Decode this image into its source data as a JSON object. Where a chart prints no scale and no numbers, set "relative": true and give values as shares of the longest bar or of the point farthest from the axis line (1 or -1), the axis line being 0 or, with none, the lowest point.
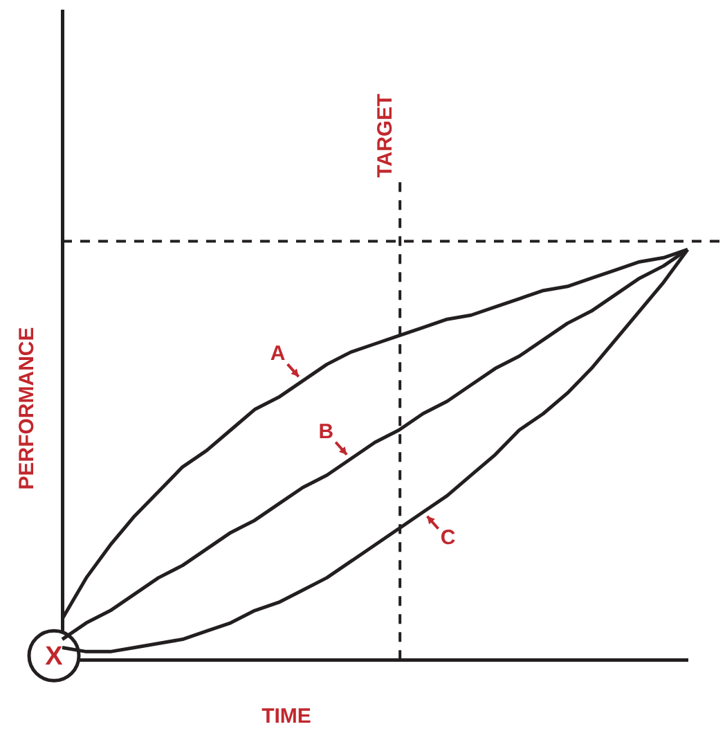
{
  "chart_data": {
    "type": "line",
    "relative": true,
    "xlabel": "TIME",
    "ylabel": "PERFORMANCE",
    "annotations": [
      "X",
      "TARGET"
    ],
    "categories": [
      null,
      null,
      null,
      null,
      null,
      null,
      null,
      null,
      null,
      null,
      null,
      null,
      null,
      null,
      null,
      null,
      null,
      null,
      null,
      null,
      null,
      null,
      null,
      null,
      null,
      null,
      null
    ],
    "series": [
      {
        "name": "A",
        "color": "#231f20",
        "values": [
          0.1,
          0.2,
          0.28,
          0.35,
          0.41,
          0.47,
          0.51,
          0.56,
          0.61,
          0.64,
          0.68,
          0.72,
          0.75,
          0.77,
          0.79,
          0.81,
          0.83,
          0.84,
          0.86,
          0.88,
          0.9,
          0.91,
          0.93,
          0.95,
          0.97,
          0.98,
          1
        ]
      },
      {
        "name": "B",
        "color": "#231f20",
        "values": [
          0.05,
          0.09,
          0.12,
          0.16,
          0.2,
          0.23,
          0.27,
          0.31,
          0.34,
          0.38,
          0.42,
          0.45,
          0.49,
          0.53,
          0.56,
          0.6,
          0.63,
          0.67,
          0.71,
          0.74,
          0.78,
          0.82,
          0.85,
          0.89,
          0.93,
          0.96,
          1
        ]
      },
      {
        "name": "C",
        "color": "#231f20",
        "values": [
          0.03,
          0.02,
          0.02,
          0.03,
          0.04,
          0.05,
          0.07,
          0.09,
          0.12,
          0.14,
          0.17,
          0.2,
          0.24,
          0.28,
          0.32,
          0.36,
          0.4,
          0.45,
          0.5,
          0.56,
          0.6,
          0.65,
          0.71,
          0.78,
          0.85,
          0.92,
          1
        ]
      }
    ],
    "ref_lines": [
      {
        "axis": "y",
        "value": 1.02,
        "line_style": "dashed",
        "color": "#231f20"
      }
    ],
    "legend": false,
    "grid": false,
    "marker": "none",
    "line_style": "solid"
  }
}
